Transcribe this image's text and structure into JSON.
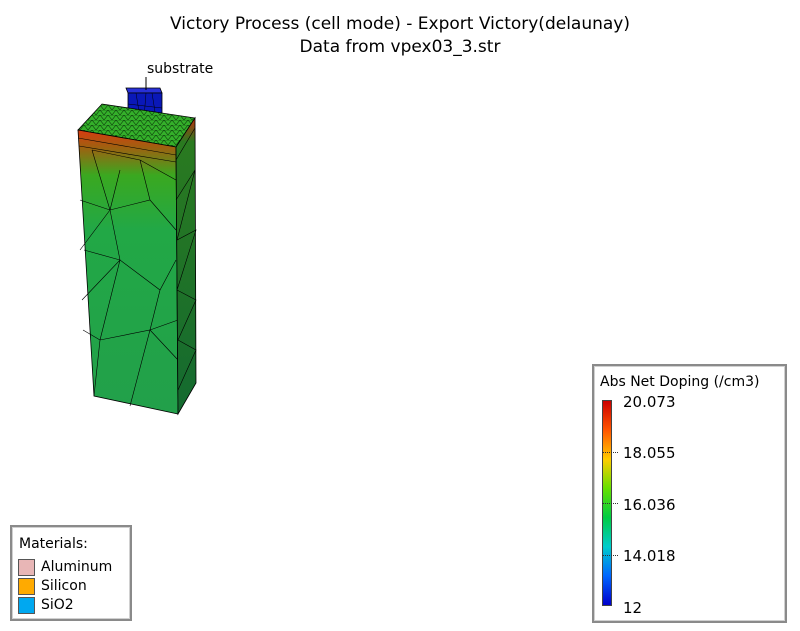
{
  "title": {
    "line1": "Victory Process  (cell mode) - Export Victory(delaunay)",
    "line2": "Data from vpex03_3.str"
  },
  "scene": {
    "region_label": "substrate"
  },
  "materials_legend": {
    "header": "Materials:",
    "items": [
      {
        "label": "Aluminum",
        "color": "#e8b6b6"
      },
      {
        "label": "Silicon",
        "color": "#ffaa00"
      },
      {
        "label": "SiO2",
        "color": "#00a8f0"
      }
    ]
  },
  "colorbar": {
    "header": "Abs Net Doping (/cm3)",
    "ticks": [
      "20.073",
      "18.055",
      "16.036",
      "14.018",
      "12"
    ],
    "min": 12,
    "max": 20.073,
    "colors": [
      "#cc0000",
      "#ff5500",
      "#ffcc00",
      "#66e000",
      "#00cc44",
      "#00cccc",
      "#0066ff",
      "#0000cc"
    ]
  }
}
